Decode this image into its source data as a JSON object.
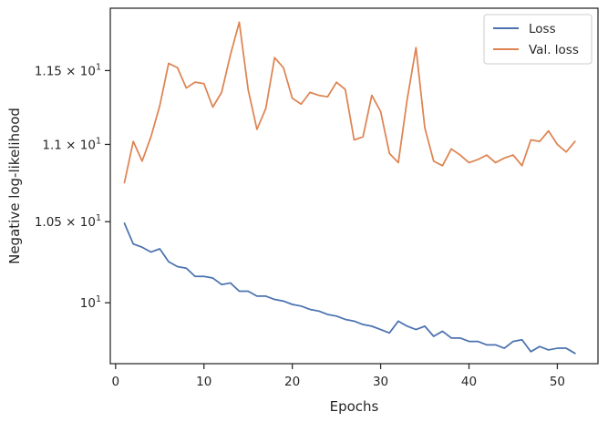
{
  "chart_data": {
    "type": "line",
    "title": "",
    "xlabel": "Epochs",
    "ylabel": "Negative log-likelihood",
    "yscale": "log",
    "xlim": [
      -0.6,
      54.6
    ],
    "ylim": [
      9.64,
      11.94
    ],
    "grid": false,
    "legend_position": "top-right",
    "x_ticks": [
      {
        "value": 0,
        "label": "0"
      },
      {
        "value": 10,
        "label": "10"
      },
      {
        "value": 20,
        "label": "20"
      },
      {
        "value": 30,
        "label": "30"
      },
      {
        "value": 40,
        "label": "40"
      },
      {
        "value": 50,
        "label": "50"
      }
    ],
    "y_ticks": [
      {
        "value": 10,
        "label_base": "10",
        "label_exp": "1",
        "coef": ""
      },
      {
        "value": 10.5,
        "label_base": "10",
        "label_exp": "1",
        "coef": "1.05"
      },
      {
        "value": 11,
        "label_base": "10",
        "label_exp": "1",
        "coef": "1.1"
      },
      {
        "value": 11.5,
        "label_base": "10",
        "label_exp": "1",
        "coef": "1.15"
      }
    ],
    "x": [
      1,
      2,
      3,
      4,
      5,
      6,
      7,
      8,
      9,
      10,
      11,
      12,
      13,
      14,
      15,
      16,
      17,
      18,
      19,
      20,
      21,
      22,
      23,
      24,
      25,
      26,
      27,
      28,
      29,
      30,
      31,
      32,
      33,
      34,
      35,
      36,
      37,
      38,
      39,
      40,
      41,
      42,
      43,
      44,
      45,
      46,
      47,
      48,
      49,
      50,
      51,
      52
    ],
    "series": [
      {
        "name": "Loss",
        "color": "#4c72b0",
        "values": [
          10.49,
          10.36,
          10.34,
          10.31,
          10.33,
          10.25,
          10.22,
          10.21,
          10.16,
          10.16,
          10.15,
          10.11,
          10.12,
          10.07,
          10.07,
          10.04,
          10.04,
          10.02,
          10.01,
          9.99,
          9.98,
          9.96,
          9.95,
          9.93,
          9.92,
          9.9,
          9.89,
          9.87,
          9.86,
          9.84,
          9.82,
          9.89,
          9.86,
          9.84,
          9.86,
          9.8,
          9.83,
          9.79,
          9.79,
          9.77,
          9.77,
          9.75,
          9.75,
          9.73,
          9.77,
          9.78,
          9.71,
          9.74,
          9.72,
          9.73,
          9.73,
          9.7
        ]
      },
      {
        "name": "Val. loss",
        "color": "#dd8452",
        "values": [
          10.75,
          11.02,
          10.89,
          11.05,
          11.26,
          11.55,
          11.52,
          11.38,
          11.42,
          11.41,
          11.25,
          11.35,
          11.61,
          11.84,
          11.37,
          11.1,
          11.24,
          11.59,
          11.52,
          11.31,
          11.27,
          11.35,
          11.33,
          11.32,
          11.42,
          11.37,
          11.03,
          11.05,
          11.33,
          11.22,
          10.94,
          10.88,
          11.3,
          11.66,
          11.11,
          10.89,
          10.86,
          10.97,
          10.93,
          10.88,
          10.9,
          10.93,
          10.88,
          10.91,
          10.93,
          10.86,
          11.03,
          11.02,
          11.09,
          11.0,
          10.95,
          11.02
        ]
      }
    ]
  }
}
